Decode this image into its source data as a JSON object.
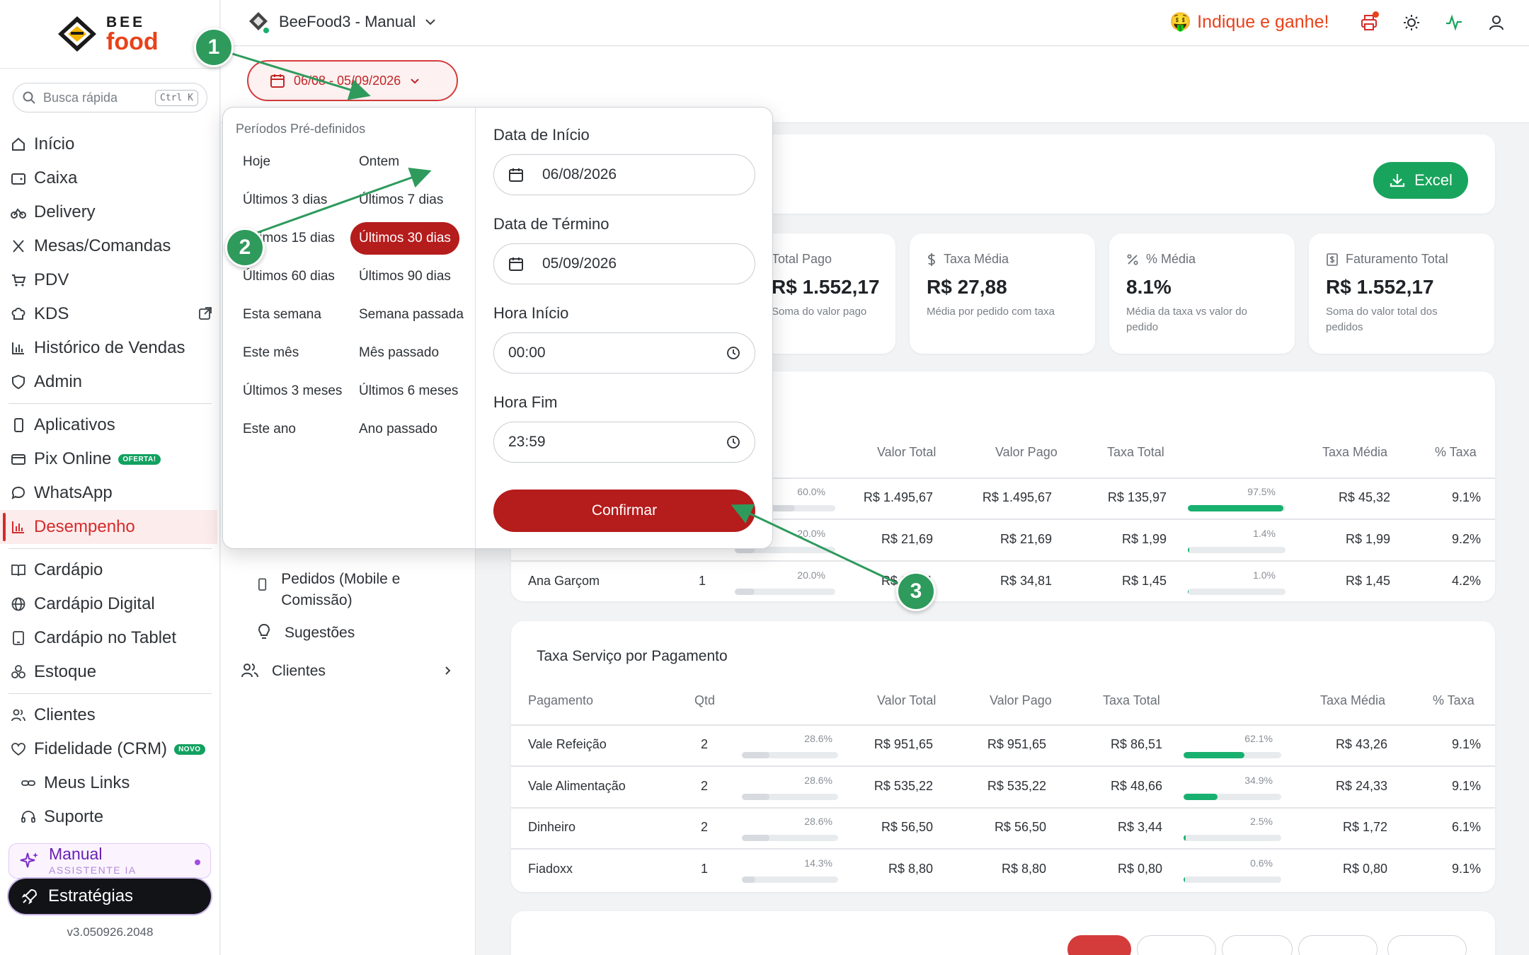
{
  "sidebar": {
    "logo": {
      "top": "BEE",
      "bottom": "food"
    },
    "search": {
      "placeholder": "Busca rápida",
      "shortcut": "Ctrl K"
    },
    "items": [
      {
        "label": "Início",
        "icon": "home-icon"
      },
      {
        "label": "Caixa",
        "icon": "wallet-icon"
      },
      {
        "label": "Delivery",
        "icon": "bike-icon"
      },
      {
        "label": "Mesas/Comandas",
        "icon": "utensils-icon"
      },
      {
        "label": "PDV",
        "icon": "cart-icon"
      },
      {
        "label": "KDS",
        "icon": "chef-hat-icon"
      },
      {
        "label": "Histórico de Vendas",
        "icon": "bar-chart-icon"
      },
      {
        "label": "Admin",
        "icon": "shield-icon"
      },
      {
        "label": "Aplicativos",
        "icon": "phone-icon"
      },
      {
        "label": "Pix Online",
        "icon": "card-icon",
        "badge": "OFERTA!"
      },
      {
        "label": "WhatsApp",
        "icon": "chat-icon"
      },
      {
        "label": "Desempenho",
        "icon": "bar-chart-icon"
      },
      {
        "label": "Cardápio",
        "icon": "book-icon"
      },
      {
        "label": "Cardápio Digital",
        "icon": "globe-icon"
      },
      {
        "label": "Cardápio no Tablet",
        "icon": "tablet-icon"
      },
      {
        "label": "Estoque",
        "icon": "boxes-icon"
      },
      {
        "label": "Clientes",
        "icon": "users-icon"
      },
      {
        "label": "Fidelidade (CRM)",
        "icon": "heart-icon",
        "badge": "NOVO"
      },
      {
        "label": "Meus Links",
        "icon": "link-icon"
      },
      {
        "label": "Suporte",
        "icon": "headset-icon"
      }
    ],
    "manual": {
      "title": "Manual",
      "subtitle": "ASSISTENTE IA"
    },
    "strategies": "Estratégias",
    "version": "v3.050926.2048"
  },
  "topbar": {
    "store": "BeeFood3 - Manual",
    "promo": "Indique e ganhe!",
    "promo_emoji": "🤑"
  },
  "date_range_button": "06/08 - 05/09/2026",
  "reports_panel": {
    "items": [
      {
        "label": "Pedidos (Mobile e Comissão)",
        "icon": "phone-icon"
      },
      {
        "label": "Sugestões",
        "icon": "bulb-icon"
      },
      {
        "label": "Clientes",
        "icon": "users-icon"
      }
    ]
  },
  "excel_label": "Excel",
  "stats": [
    {
      "label": "Total Pago",
      "value": "R$ 1.552,17",
      "desc": "Soma do valor pago",
      "icon": "dollar-icon"
    },
    {
      "label": "Taxa Média",
      "value": "R$ 27,88",
      "desc": "Média por pedido com taxa",
      "icon": "dollar-icon"
    },
    {
      "label": "% Média",
      "value": "8.1%",
      "desc": "Média da taxa vs valor do pedido",
      "icon": "percent-icon"
    },
    {
      "label": "Faturamento Total",
      "value": "R$ 1.552,17",
      "desc": "Soma do valor total dos pedidos",
      "icon": "receipt-icon"
    }
  ],
  "table1": {
    "headers": [
      "Valor Total",
      "Valor Pago",
      "Taxa Total",
      "Taxa Média",
      "% Taxa"
    ],
    "rows": [
      {
        "name": "",
        "qtd": "",
        "qtd_pct": "60.0%",
        "qtd_frac": 0.6,
        "total": "R$ 1.495,67",
        "pago": "R$ 1.495,67",
        "taxa": "R$ 135,97",
        "taxa_pct": "97.5%",
        "taxa_frac": 0.975,
        "media": "R$ 45,32",
        "perc": "9.1%"
      },
      {
        "name": "",
        "qtd": "",
        "qtd_pct": "20.0%",
        "qtd_frac": 0.2,
        "total": "R$ 21,69",
        "pago": "R$ 21,69",
        "taxa": "R$ 1,99",
        "taxa_pct": "1.4%",
        "taxa_frac": 0.014,
        "media": "R$ 1,99",
        "perc": "9.2%"
      },
      {
        "name": "Ana Garçom",
        "qtd": "1",
        "qtd_pct": "20.0%",
        "qtd_frac": 0.2,
        "total": "R$ 34,81",
        "pago": "R$ 34,81",
        "taxa": "R$ 1,45",
        "taxa_pct": "1.0%",
        "taxa_frac": 0.01,
        "media": "R$ 1,45",
        "perc": "4.2%"
      }
    ]
  },
  "table2": {
    "title": "Taxa Serviço por Pagamento",
    "headers": [
      "Pagamento",
      "Qtd",
      "Valor Total",
      "Valor Pago",
      "Taxa Total",
      "Taxa Média",
      "% Taxa"
    ],
    "rows": [
      {
        "name": "Vale Refeição",
        "qtd": "2",
        "qtd_pct": "28.6%",
        "qtd_frac": 0.286,
        "total": "R$ 951,65",
        "pago": "R$ 951,65",
        "taxa": "R$ 86,51",
        "taxa_pct": "62.1%",
        "taxa_frac": 0.621,
        "media": "R$ 43,26",
        "perc": "9.1%"
      },
      {
        "name": "Vale Alimentação",
        "qtd": "2",
        "qtd_pct": "28.6%",
        "qtd_frac": 0.286,
        "total": "R$ 535,22",
        "pago": "R$ 535,22",
        "taxa": "R$ 48,66",
        "taxa_pct": "34.9%",
        "taxa_frac": 0.349,
        "media": "R$ 24,33",
        "perc": "9.1%"
      },
      {
        "name": "Dinheiro",
        "qtd": "2",
        "qtd_pct": "28.6%",
        "qtd_frac": 0.286,
        "total": "R$ 56,50",
        "pago": "R$ 56,50",
        "taxa": "R$ 3,44",
        "taxa_pct": "2.5%",
        "taxa_frac": 0.025,
        "media": "R$ 1,72",
        "perc": "6.1%"
      },
      {
        "name": "Fiadoxx",
        "qtd": "1",
        "qtd_pct": "14.3%",
        "qtd_frac": 0.143,
        "total": "R$ 8,80",
        "pago": "R$ 8,80",
        "taxa": "R$ 0,80",
        "taxa_pct": "0.6%",
        "taxa_frac": 0.006,
        "media": "R$ 0,80",
        "perc": "9.1%"
      }
    ]
  },
  "date_picker": {
    "presets_title": "Períodos Pré-definidos",
    "presets": [
      [
        "Hoje",
        "Ontem"
      ],
      [
        "Últimos 3 dias",
        "Últimos 7 dias"
      ],
      [
        "Últimos 15 dias",
        "Últimos 30 dias"
      ],
      [
        "Últimos 60 dias",
        "Últimos 90 dias"
      ],
      [
        "Esta semana",
        "Semana passada"
      ],
      [
        "Este mês",
        "Mês passado"
      ],
      [
        "Últimos 3 meses",
        "Últimos 6 meses"
      ],
      [
        "Este ano",
        "Ano passado"
      ]
    ],
    "selected_preset": "Últimos 30 dias",
    "start_label": "Data de Início",
    "start_value": "06/08/2026",
    "end_label": "Data de Término",
    "end_value": "05/09/2026",
    "time_start_label": "Hora Início",
    "time_start_value": "00:00",
    "time_end_label": "Hora Fim",
    "time_end_value": "23:59",
    "confirm_label": "Confirmar"
  },
  "markers": [
    "1",
    "2",
    "3"
  ],
  "colors": {
    "brand_red": "#b51c1c",
    "accent_green": "#18a45c",
    "marker_green": "#2e9a5c",
    "promo_orange": "#e8421a"
  }
}
